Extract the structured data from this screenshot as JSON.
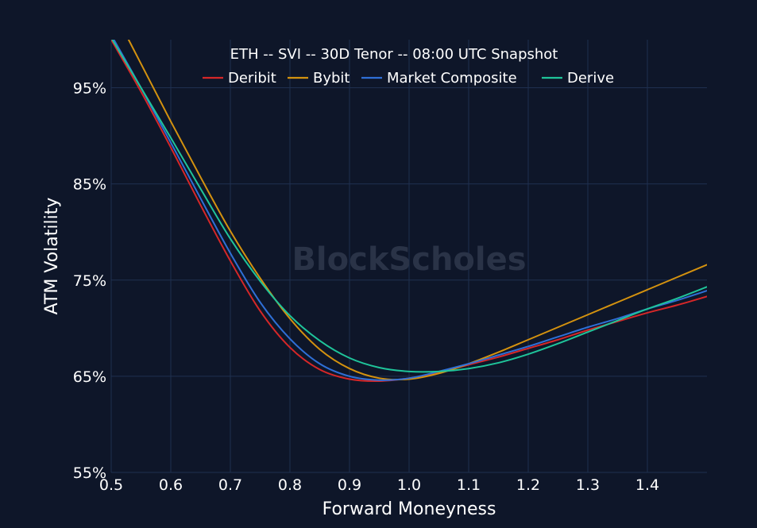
{
  "chart_data": {
    "type": "line",
    "title": "ETH -- SVI -- 30D Tenor -- 08:00 UTC Snapshot",
    "xlabel": "Forward Moneyness",
    "ylabel": "ATM Volatility",
    "watermark": "BlockScholes",
    "xlim": [
      0.5,
      1.5
    ],
    "ylim": [
      55,
      100
    ],
    "xticks": [
      0.5,
      0.6,
      0.7,
      0.8,
      0.9,
      1.0,
      1.1,
      1.2,
      1.3,
      1.4
    ],
    "xtick_labels": [
      "0.5",
      "0.6",
      "0.7",
      "0.8",
      "0.9",
      "1.0",
      "1.1",
      "1.2",
      "1.3",
      "1.4"
    ],
    "yticks": [
      55,
      65,
      75,
      85,
      95
    ],
    "ytick_labels": [
      "55%",
      "65%",
      "75%",
      "85%",
      "95%"
    ],
    "grid": true,
    "legend_position": "top-center",
    "background": "#0e1629",
    "grid_color": "#1f3050",
    "series": [
      {
        "name": "Deribit",
        "color": "#d62728",
        "x": [
          0.5,
          0.55,
          0.6,
          0.65,
          0.7,
          0.75,
          0.8,
          0.85,
          0.9,
          0.95,
          1.0,
          1.05,
          1.1,
          1.15,
          1.2,
          1.25,
          1.3,
          1.35,
          1.4,
          1.45,
          1.5
        ],
        "y": [
          100,
          94.6,
          88.8,
          82.8,
          77.0,
          71.8,
          68.0,
          65.7,
          64.7,
          64.5,
          64.8,
          65.4,
          66.2,
          67.0,
          67.9,
          68.8,
          69.8,
          70.7,
          71.6,
          72.4,
          73.3
        ]
      },
      {
        "name": "Bybit",
        "color": "#d4920f",
        "x": [
          0.5,
          0.55,
          0.6,
          0.65,
          0.7,
          0.75,
          0.8,
          0.85,
          0.9,
          0.95,
          1.0,
          1.05,
          1.1,
          1.15,
          1.2,
          1.25,
          1.3,
          1.35,
          1.4,
          1.45,
          1.5
        ],
        "y": [
          103.5,
          97.5,
          91.5,
          85.7,
          80.1,
          75.2,
          71.0,
          67.8,
          65.8,
          64.8,
          64.7,
          65.3,
          66.3,
          67.5,
          68.8,
          70.1,
          71.4,
          72.7,
          74.0,
          75.3,
          76.6
        ]
      },
      {
        "name": "Market Composite",
        "color": "#2f6fd6",
        "x": [
          0.5,
          0.55,
          0.6,
          0.65,
          0.7,
          0.75,
          0.8,
          0.85,
          0.9,
          0.95,
          1.0,
          1.05,
          1.1,
          1.15,
          1.2,
          1.25,
          1.3,
          1.35,
          1.4,
          1.45,
          1.5
        ],
        "y": [
          100.5,
          95.0,
          89.3,
          83.5,
          77.8,
          72.7,
          68.9,
          66.3,
          65.0,
          64.6,
          64.8,
          65.5,
          66.3,
          67.2,
          68.1,
          69.1,
          70.1,
          71.0,
          72.0,
          72.9,
          73.9
        ]
      },
      {
        "name": "Derive",
        "color": "#1fc49a",
        "x": [
          0.5,
          0.55,
          0.6,
          0.65,
          0.7,
          0.75,
          0.8,
          0.85,
          0.9,
          0.95,
          1.0,
          1.05,
          1.1,
          1.15,
          1.2,
          1.25,
          1.3,
          1.35,
          1.4,
          1.45,
          1.5
        ],
        "y": [
          100.2,
          95.0,
          89.8,
          84.5,
          79.3,
          74.9,
          71.3,
          68.7,
          66.9,
          65.9,
          65.5,
          65.5,
          65.8,
          66.4,
          67.3,
          68.4,
          69.6,
          70.8,
          72.0,
          73.1,
          74.3
        ]
      }
    ]
  }
}
